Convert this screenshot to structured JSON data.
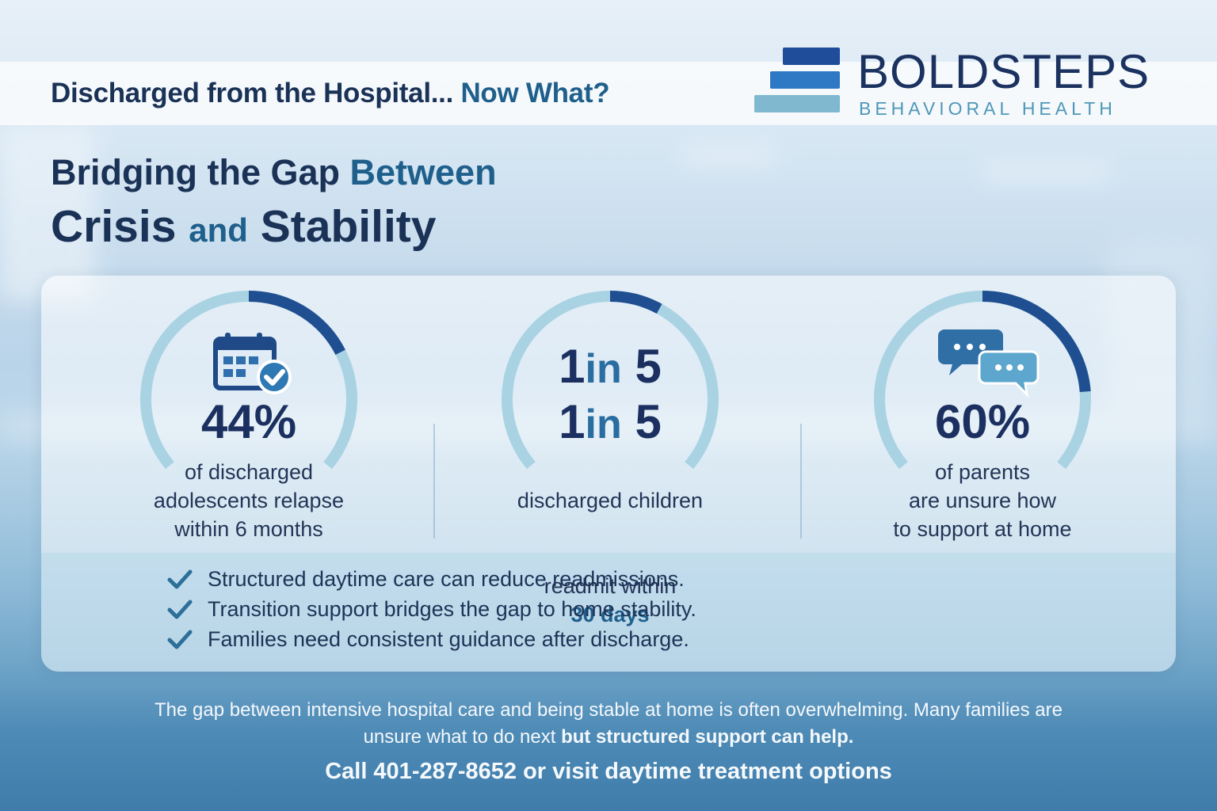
{
  "header": {
    "title_main": "Discharged from the Hospital...",
    "title_accent": "Now What?"
  },
  "logo": {
    "name": "BOLDSTEPS",
    "subtitle": "BEHAVIORAL HEALTH",
    "colors": [
      "#1f4d9a",
      "#2f79c4",
      "#7fb8cf"
    ]
  },
  "headline": {
    "line1_main": "Bridging the Gap",
    "line1_accent": "Between",
    "line2_a": "Crisis",
    "line2_and": "and",
    "line2_b": "Stability"
  },
  "stats": [
    {
      "icon": "calendar-check-icon",
      "value": "44%",
      "description": "of discharged\nadolescents relapse\nwithin 6 months",
      "ring_fraction": 0.44
    },
    {
      "value_line1_a": "1",
      "value_line1_in": "in",
      "value_line1_b": "5",
      "value_line2_a": "1",
      "value_line2_in": "in",
      "value_line2_b": "5",
      "description_a": "discharged children",
      "description_b": "readmit within",
      "description_hl": "30 days",
      "ring_fraction": 0.2
    },
    {
      "icon": "chat-bubbles-icon",
      "value": "60%",
      "description": "of parents\nare unsure how\nto support at home",
      "ring_fraction": 0.6
    }
  ],
  "checklist": [
    "Structured daytime care can reduce readmissions.",
    "Transition support bridges the gap to home stability.",
    "Families need consistent guidance after discharge."
  ],
  "footer": {
    "line1": "The gap between intensive hospital care and being stable at home is often overwhelming. Many families are",
    "line2_a": "unsure what to do next",
    "line2_b": "but structured support can help.",
    "cta": "Call 401-287-8652 or visit daytime treatment options"
  },
  "colors": {
    "ring_track": "#a9d3e3",
    "ring_fill": "#1f4f91",
    "accent": "#1f5f8b",
    "dark_text": "#1b3257",
    "check": "#2d6f98"
  }
}
